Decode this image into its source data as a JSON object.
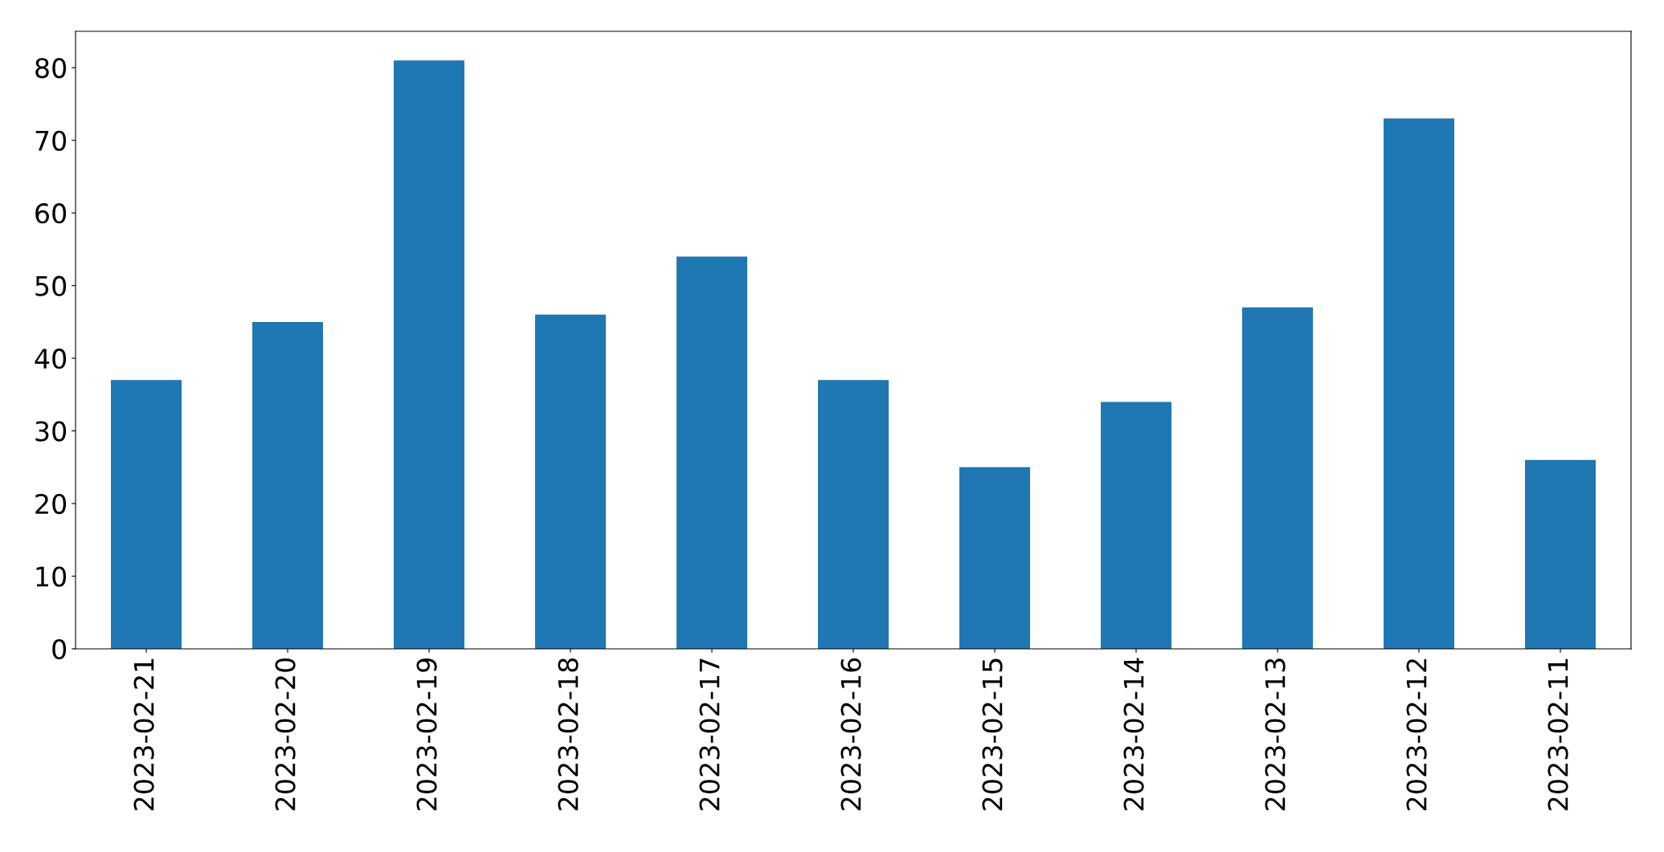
{
  "chart_data": {
    "type": "bar",
    "categories": [
      "2023-02-21",
      "2023-02-20",
      "2023-02-19",
      "2023-02-18",
      "2023-02-17",
      "2023-02-16",
      "2023-02-15",
      "2023-02-14",
      "2023-02-13",
      "2023-02-12",
      "2023-02-11"
    ],
    "values": [
      37,
      45,
      81,
      46,
      54,
      37,
      25,
      34,
      47,
      73,
      26
    ],
    "color": "#1f77b4",
    "ylim": [
      0,
      85
    ],
    "yticks": [
      0,
      10,
      20,
      30,
      40,
      50,
      60,
      70,
      80
    ],
    "grid": false,
    "legend": false
  }
}
